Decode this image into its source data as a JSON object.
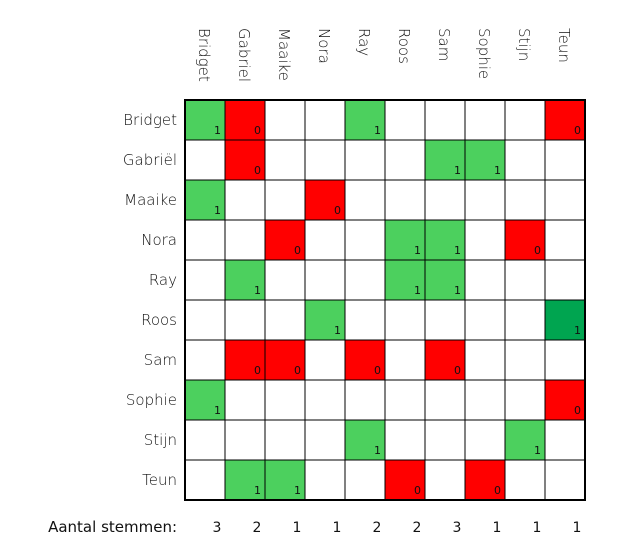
{
  "columns": [
    "Bridget",
    "Gabriel",
    "Maaike",
    "Nora",
    "Ray",
    "Roos",
    "Sam",
    "Sophie",
    "Stijn",
    "Teun"
  ],
  "rows": [
    "Bridget",
    "Gabriël",
    "Maaike",
    "Nora",
    "Ray",
    "Roos",
    "Sam",
    "Sophie",
    "Stijn",
    "Teun"
  ],
  "cells": [
    [
      1,
      0,
      null,
      null,
      1,
      null,
      null,
      null,
      null,
      0
    ],
    [
      null,
      0,
      null,
      null,
      null,
      null,
      1,
      1,
      null,
      null
    ],
    [
      1,
      null,
      null,
      0,
      null,
      null,
      null,
      null,
      null,
      null
    ],
    [
      null,
      null,
      0,
      null,
      null,
      1,
      1,
      null,
      0,
      null
    ],
    [
      null,
      1,
      null,
      null,
      null,
      1,
      1,
      null,
      null,
      null
    ],
    [
      null,
      null,
      null,
      1,
      null,
      null,
      null,
      null,
      null,
      "1*"
    ],
    [
      null,
      0,
      0,
      null,
      0,
      null,
      0,
      null,
      null,
      null
    ],
    [
      1,
      null,
      null,
      null,
      null,
      null,
      null,
      null,
      null,
      0
    ],
    [
      null,
      null,
      null,
      null,
      1,
      null,
      null,
      null,
      1,
      null
    ],
    [
      null,
      1,
      1,
      null,
      null,
      0,
      null,
      0,
      null,
      null
    ]
  ],
  "totals_label": "Aantal stemmen:",
  "totals": [
    3,
    2,
    1,
    1,
    2,
    2,
    3,
    1,
    1,
    1
  ],
  "colors": {
    "yes": "#4cd05e",
    "no": "#ff0000",
    "highlight": "#00a550",
    "empty": "#ffffff",
    "grid": "#000000"
  }
}
